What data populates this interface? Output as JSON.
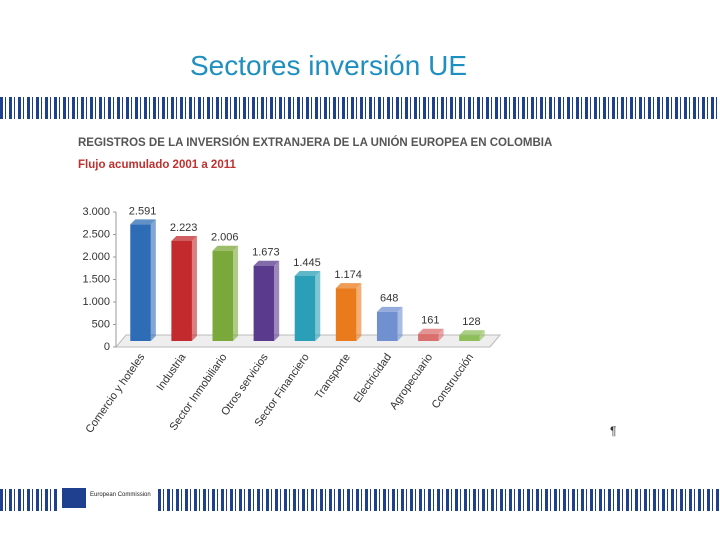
{
  "header": {
    "title": "Sectores inversión UE"
  },
  "footer": {
    "logo_text": "European Commission",
    "mark": "¶"
  },
  "chart_data": {
    "type": "bar",
    "title": "REGISTROS DE LA INVERSIÓN EXTRANJERA DE LA UNIÓN EUROPEA  EN COLOMBIA",
    "subtitle": "Flujo acumulado 2001 a 2011",
    "categories": [
      "Comercio y hoteles",
      "Industria",
      "Sector Inmobiliario",
      "Otros servicios",
      "Sector Financiero",
      "Transporte",
      "Electricidad",
      "Agropecuario",
      "Construcción"
    ],
    "values": [
      2591,
      2223,
      2006,
      1673,
      1445,
      1174,
      648,
      161,
      128
    ],
    "value_labels": [
      "2.591",
      "2.223",
      "2.006",
      "1.673",
      "1.445",
      "1.174",
      "648",
      "161",
      "128"
    ],
    "colors": [
      "#2e6cb5",
      "#c32a2d",
      "#7ba83a",
      "#5a3a8d",
      "#2a9fb7",
      "#e97b1d",
      "#7090d0",
      "#d9706e",
      "#8fbf5a"
    ],
    "ylim": [
      0,
      3000
    ],
    "yticks": [
      0,
      500,
      {
        "value": 1000,
        "label": "1.000"
      },
      {
        "value": 1500,
        "label": "1.500"
      },
      {
        "value": 2000,
        "label": "2.000"
      },
      {
        "value": 2500,
        "label": "2.500"
      },
      {
        "value": 3000,
        "label": "3.000"
      }
    ]
  }
}
